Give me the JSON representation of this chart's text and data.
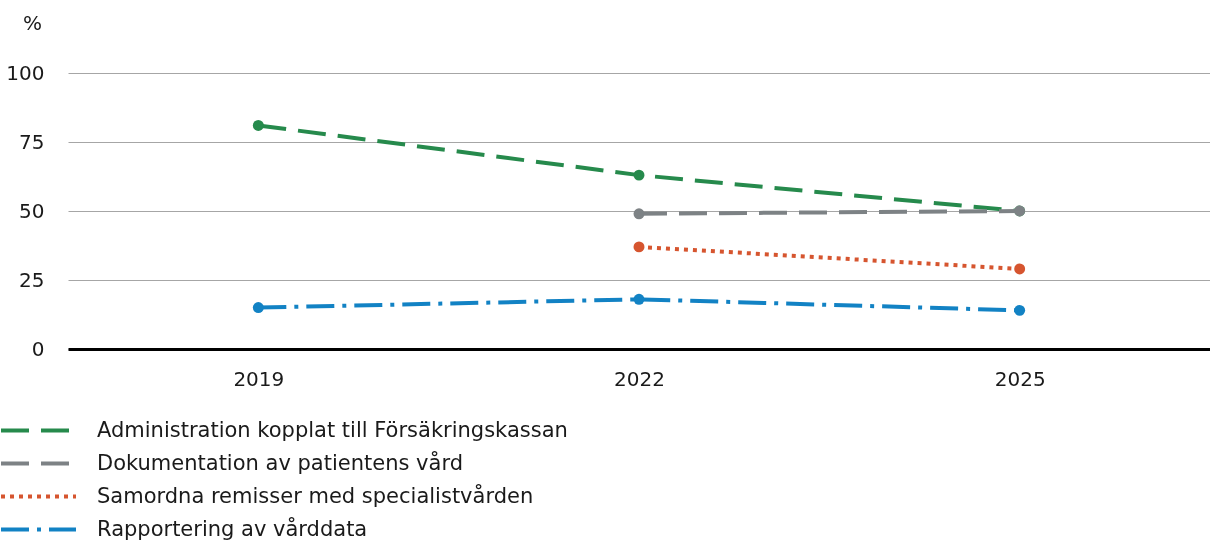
{
  "chart_data": {
    "type": "line",
    "ylabel": "%",
    "categories": [
      "2019",
      "2022",
      "2025"
    ],
    "ylim": [
      0,
      100
    ],
    "yticks": [
      0,
      25,
      50,
      75,
      100
    ],
    "grid": "y",
    "legend": "bottom",
    "marker": "circle",
    "series": [
      {
        "name": "Administration kopplat till Försäkringskassan",
        "color": "#268a4c",
        "line_style": "dashed",
        "values": [
          81,
          63,
          50
        ]
      },
      {
        "name": "Dokumentation av patientens vård",
        "color": "#7d8285",
        "line_style": "dashed",
        "values": [
          null,
          49,
          50
        ]
      },
      {
        "name": "Samordna remisser med specialistvården",
        "color": "#d6552f",
        "line_style": "dotted",
        "values": [
          null,
          37,
          29
        ]
      },
      {
        "name": "Rapportering av vårddata",
        "color": "#1282c4",
        "line_style": "dashdot",
        "values": [
          15,
          18,
          14
        ]
      }
    ]
  }
}
